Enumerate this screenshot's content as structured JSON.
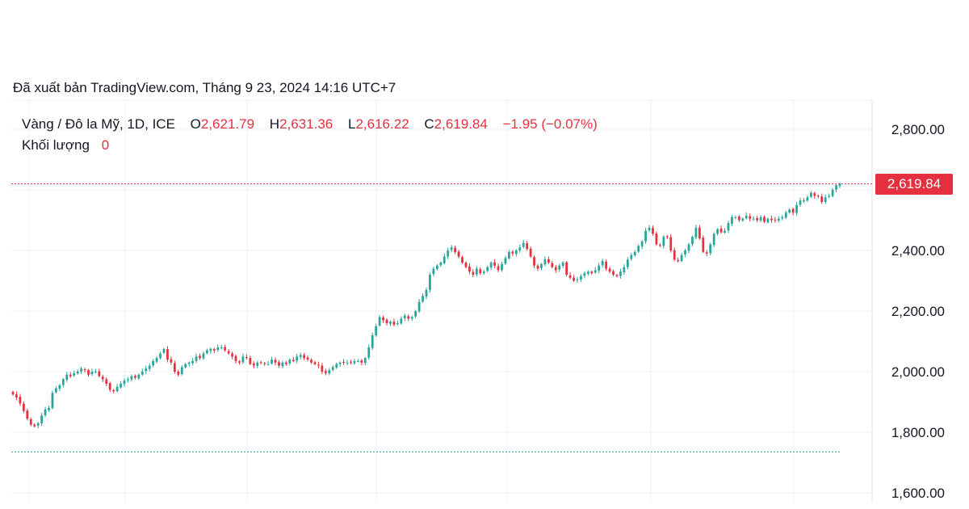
{
  "published_text": "Đã xuất bản TradingView.com, Tháng 9 23, 2024 14:16 UTC+7",
  "legend": {
    "symbol": "Vàng / Đô la Mỹ, 1D, ICE",
    "open_label": "O",
    "open_value": "2,621.79",
    "high_label": "H",
    "high_value": "2,631.36",
    "low_label": "L",
    "low_value": "2,616.22",
    "close_label": "C",
    "close_value": "2,619.84",
    "change": "−1.95 (−0.07%)",
    "volume_label": "Khối lượng",
    "volume_value": "0"
  },
  "last_price_label": "2,619.84",
  "colors": {
    "up": "#26a69a",
    "down": "#e5303f",
    "grid": "#eef0f3",
    "text": "#131722",
    "tag": "#e5303f"
  },
  "chart_data": {
    "type": "candlestick",
    "x_unit": "trading day index (daily candles, approx.)",
    "ylim": [
      1590,
      2830
    ],
    "y_ticks": [
      "2,800.00",
      "2,400.00",
      "2,200.00",
      "2,000.00",
      "1,800.00",
      "1,600.00"
    ],
    "y_tick_values": [
      2800,
      2400,
      2200,
      2000,
      1800,
      1600
    ],
    "reference_lines": [
      {
        "value": 2619.84,
        "color": "#e5303f"
      },
      {
        "value": 1735,
        "color": "#26a69a"
      }
    ],
    "grid": true,
    "series": [
      {
        "values": [
          1925,
          1915,
          1895,
          1870,
          1845,
          1825,
          1820,
          1830,
          1855,
          1875,
          1880,
          1930,
          1945,
          1955,
          1975,
          1990,
          1985,
          1995,
          2000,
          2010,
          2005,
          1990,
          2000,
          2000,
          1985,
          1975,
          1960,
          1940,
          1935,
          1950,
          1960,
          1970,
          1975,
          1985,
          1980,
          1990,
          2000,
          2010,
          2020,
          2035,
          2045,
          2060,
          2075,
          2040,
          2030,
          2000,
          1990,
          2015,
          2025,
          2030,
          2035,
          2050,
          2045,
          2060,
          2070,
          2075,
          2070,
          2080,
          2080,
          2070,
          2060,
          2050,
          2035,
          2030,
          2050,
          2045,
          2025,
          2020,
          2030,
          2030,
          2025,
          2025,
          2040,
          2030,
          2020,
          2030,
          2025,
          2040,
          2035,
          2050,
          2055,
          2045,
          2040,
          2030,
          2025,
          2020,
          2000,
          1995,
          2005,
          2015,
          2025,
          2030,
          2030,
          2030,
          2030,
          2035,
          2035,
          2030,
          2045,
          2080,
          2120,
          2150,
          2180,
          2170,
          2160,
          2165,
          2155,
          2160,
          2175,
          2185,
          2175,
          2180,
          2200,
          2230,
          2250,
          2270,
          2320,
          2340,
          2350,
          2360,
          2380,
          2400,
          2410,
          2395,
          2380,
          2360,
          2345,
          2330,
          2320,
          2340,
          2325,
          2330,
          2345,
          2360,
          2350,
          2335,
          2355,
          2375,
          2395,
          2390,
          2400,
          2410,
          2425,
          2405,
          2380,
          2350,
          2340,
          2355,
          2370,
          2360,
          2345,
          2335,
          2350,
          2360,
          2320,
          2310,
          2300,
          2305,
          2315,
          2325,
          2330,
          2325,
          2335,
          2350,
          2365,
          2340,
          2330,
          2320,
          2315,
          2330,
          2345,
          2370,
          2385,
          2395,
          2415,
          2430,
          2465,
          2475,
          2455,
          2420,
          2415,
          2445,
          2445,
          2400,
          2370,
          2365,
          2385,
          2400,
          2420,
          2445,
          2475,
          2440,
          2395,
          2390,
          2420,
          2455,
          2470,
          2460,
          2465,
          2490,
          2510,
          2510,
          2500,
          2505,
          2515,
          2505,
          2505,
          2500,
          2510,
          2495,
          2505,
          2500,
          2500,
          2505,
          2510,
          2525,
          2535,
          2525,
          2550,
          2565,
          2565,
          2575,
          2590,
          2580,
          2580,
          2560,
          2575,
          2580,
          2600,
          2615,
          2620
        ]
      }
    ]
  }
}
